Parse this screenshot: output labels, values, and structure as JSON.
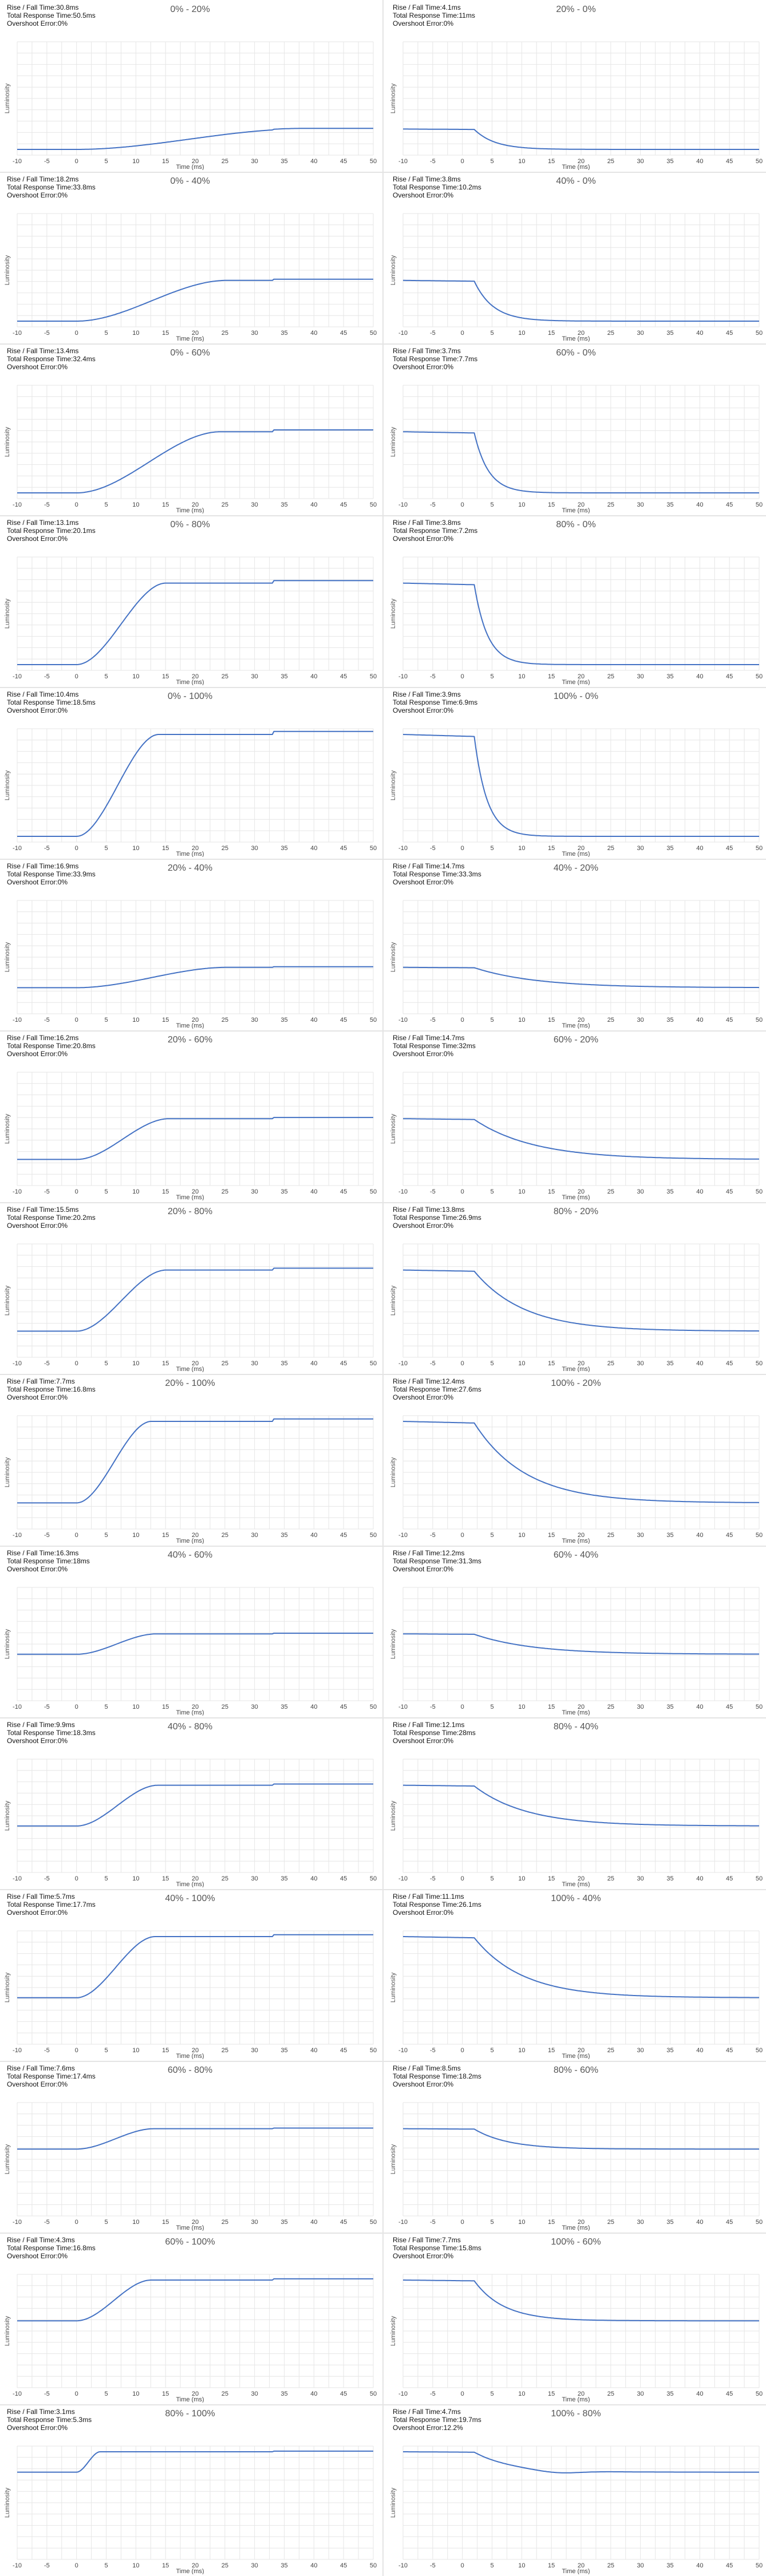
{
  "chart_defaults": {
    "ylabel": "Luminosity",
    "xlabel": "Time (ms)",
    "xticks": [
      -10,
      -5,
      0,
      5,
      10,
      15,
      20,
      25,
      30,
      35,
      40,
      45,
      50
    ],
    "xlim": [
      -10,
      50
    ],
    "line_color": "#4472c4",
    "grid_color": "#e6e6e6",
    "stat_labels": [
      "Rise / Fall Time:",
      "Total Response Time:",
      "Overshoot Error:"
    ]
  },
  "chart_data": [
    {
      "type": "line",
      "title": "0% - 20%",
      "dir": "rise",
      "from": 0,
      "to": 20,
      "stats": [
        "30.8ms",
        "50.5ms",
        "0%"
      ]
    },
    {
      "type": "line",
      "title": "20% - 0%",
      "dir": "fall",
      "from": 20,
      "to": 0,
      "stats": [
        "4.1ms",
        "11ms",
        "0%"
      ]
    },
    {
      "type": "line",
      "title": "0% - 40%",
      "dir": "rise",
      "from": 0,
      "to": 40,
      "stats": [
        "18.2ms",
        "33.8ms",
        "0%"
      ]
    },
    {
      "type": "line",
      "title": "40% - 0%",
      "dir": "fall",
      "from": 40,
      "to": 0,
      "stats": [
        "3.8ms",
        "10.2ms",
        "0%"
      ]
    },
    {
      "type": "line",
      "title": "0% - 60%",
      "dir": "rise",
      "from": 0,
      "to": 60,
      "stats": [
        "13.4ms",
        "32.4ms",
        "0%"
      ]
    },
    {
      "type": "line",
      "title": "60% - 0%",
      "dir": "fall",
      "from": 60,
      "to": 0,
      "stats": [
        "3.7ms",
        "7.7ms",
        "0%"
      ]
    },
    {
      "type": "line",
      "title": "0% - 80%",
      "dir": "rise",
      "from": 0,
      "to": 80,
      "stats": [
        "13.1ms",
        "20.1ms",
        "0%"
      ]
    },
    {
      "type": "line",
      "title": "80% - 0%",
      "dir": "fall",
      "from": 80,
      "to": 0,
      "stats": [
        "3.8ms",
        "7.2ms",
        "0%"
      ]
    },
    {
      "type": "line",
      "title": "0% - 100%",
      "dir": "rise",
      "from": 0,
      "to": 100,
      "stats": [
        "10.4ms",
        "18.5ms",
        "0%"
      ]
    },
    {
      "type": "line",
      "title": "100% - 0%",
      "dir": "fall",
      "from": 100,
      "to": 0,
      "stats": [
        "3.9ms",
        "6.9ms",
        "0%"
      ]
    },
    {
      "type": "line",
      "title": "20% - 40%",
      "dir": "rise",
      "from": 20,
      "to": 40,
      "stats": [
        "16.9ms",
        "33.9ms",
        "0%"
      ]
    },
    {
      "type": "line",
      "title": "40% - 20%",
      "dir": "fall",
      "from": 40,
      "to": 20,
      "stats": [
        "14.7ms",
        "33.3ms",
        "0%"
      ]
    },
    {
      "type": "line",
      "title": "20% - 60%",
      "dir": "rise",
      "from": 20,
      "to": 60,
      "stats": [
        "16.2ms",
        "20.8ms",
        "0%"
      ]
    },
    {
      "type": "line",
      "title": "60% - 20%",
      "dir": "fall",
      "from": 60,
      "to": 20,
      "stats": [
        "14.7ms",
        "32ms",
        "0%"
      ]
    },
    {
      "type": "line",
      "title": "20% - 80%",
      "dir": "rise",
      "from": 20,
      "to": 80,
      "stats": [
        "15.5ms",
        "20.2ms",
        "0%"
      ]
    },
    {
      "type": "line",
      "title": "80% - 20%",
      "dir": "fall",
      "from": 80,
      "to": 20,
      "stats": [
        "13.8ms",
        "26.9ms",
        "0%"
      ]
    },
    {
      "type": "line",
      "title": "20% - 100%",
      "dir": "rise",
      "from": 20,
      "to": 100,
      "stats": [
        "7.7ms",
        "16.8ms",
        "0%"
      ]
    },
    {
      "type": "line",
      "title": "100% - 20%",
      "dir": "fall",
      "from": 100,
      "to": 20,
      "stats": [
        "12.4ms",
        "27.6ms",
        "0%"
      ]
    },
    {
      "type": "line",
      "title": "40% - 60%",
      "dir": "rise",
      "from": 40,
      "to": 60,
      "stats": [
        "16.3ms",
        "18ms",
        "0%"
      ]
    },
    {
      "type": "line",
      "title": "60% - 40%",
      "dir": "fall",
      "from": 60,
      "to": 40,
      "stats": [
        "12.2ms",
        "31.3ms",
        "0%"
      ]
    },
    {
      "type": "line",
      "title": "40% - 80%",
      "dir": "rise",
      "from": 40,
      "to": 80,
      "stats": [
        "9.9ms",
        "18.3ms",
        "0%"
      ]
    },
    {
      "type": "line",
      "title": "80% - 40%",
      "dir": "fall",
      "from": 80,
      "to": 40,
      "stats": [
        "12.1ms",
        "28ms",
        "0%"
      ]
    },
    {
      "type": "line",
      "title": "40% - 100%",
      "dir": "rise",
      "from": 40,
      "to": 100,
      "stats": [
        "5.7ms",
        "17.7ms",
        "0%"
      ]
    },
    {
      "type": "line",
      "title": "100% - 40%",
      "dir": "fall",
      "from": 100,
      "to": 40,
      "stats": [
        "11.1ms",
        "26.1ms",
        "0%"
      ]
    },
    {
      "type": "line",
      "title": "60% - 80%",
      "dir": "rise",
      "from": 60,
      "to": 80,
      "stats": [
        "7.6ms",
        "17.4ms",
        "0%"
      ]
    },
    {
      "type": "line",
      "title": "80% - 60%",
      "dir": "fall",
      "from": 80,
      "to": 60,
      "stats": [
        "8.5ms",
        "18.2ms",
        "0%"
      ]
    },
    {
      "type": "line",
      "title": "60% - 100%",
      "dir": "rise",
      "from": 60,
      "to": 100,
      "stats": [
        "4.3ms",
        "16.8ms",
        "0%"
      ]
    },
    {
      "type": "line",
      "title": "100% - 60%",
      "dir": "fall",
      "from": 100,
      "to": 60,
      "stats": [
        "7.7ms",
        "15.8ms",
        "0%"
      ]
    },
    {
      "type": "line",
      "title": "80% - 100%",
      "dir": "rise",
      "from": 80,
      "to": 100,
      "stats": [
        "3.1ms",
        "5.3ms",
        "0%"
      ]
    },
    {
      "type": "line",
      "title": "100% - 80%",
      "dir": "fall",
      "from": 100,
      "to": 80,
      "stats": [
        "4.7ms",
        "19.7ms",
        "12.2%"
      ]
    }
  ]
}
